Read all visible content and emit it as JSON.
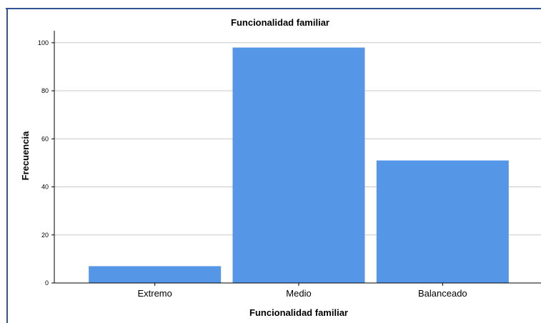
{
  "chart_data": {
    "type": "bar",
    "title": "Funcionalidad familiar",
    "xlabel": "Funcionalidad familiar",
    "ylabel": "Frecuencia",
    "categories": [
      "Extremo",
      "Medio",
      "Balanceado"
    ],
    "values": [
      7,
      98,
      51
    ],
    "ylim": [
      0,
      105
    ],
    "yticks": [
      0,
      20,
      40,
      60,
      80,
      100
    ],
    "grid": true,
    "legend": "none",
    "bar_color": "#5596E6"
  },
  "colors": {
    "frame_border": "#2F5597",
    "gridline": "#c8c8c8",
    "axis": "#000000"
  }
}
